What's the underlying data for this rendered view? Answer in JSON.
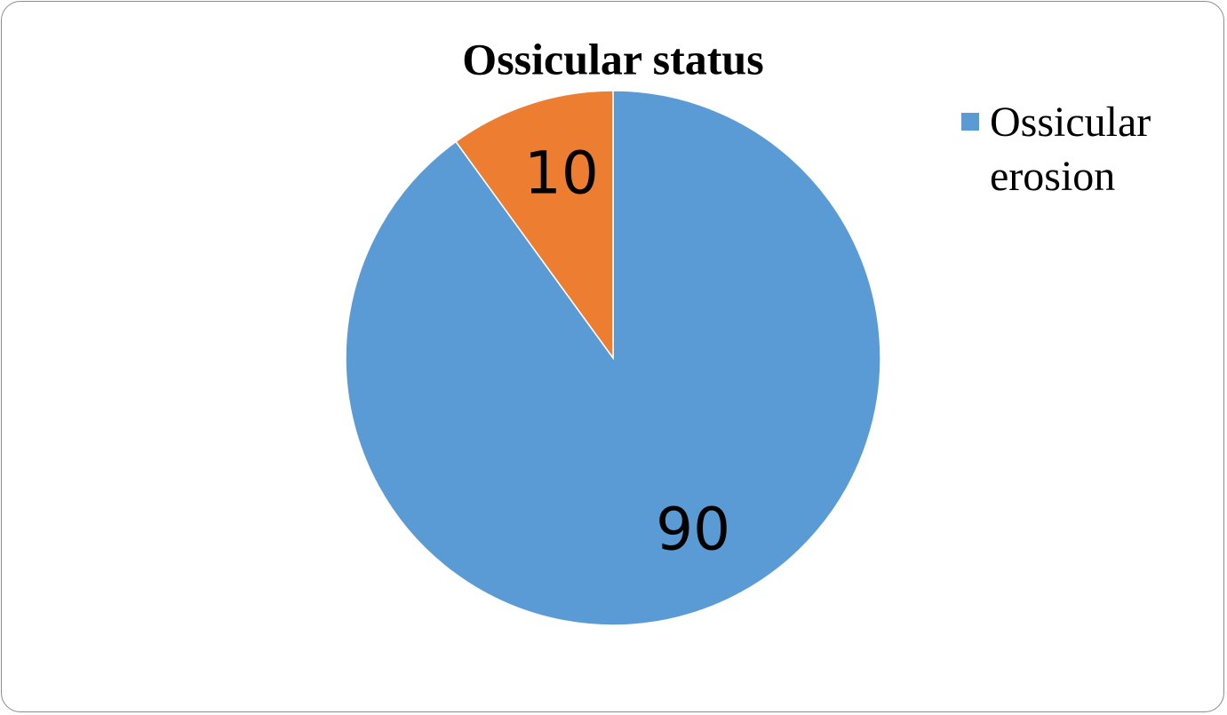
{
  "chart_data": {
    "type": "pie",
    "title": "Ossicular status",
    "categories": [
      "Ossicular erosion",
      null
    ],
    "values": [
      90,
      10
    ],
    "colors": [
      "#5b9bd5",
      "#ed7d31"
    ],
    "legend": "right"
  }
}
